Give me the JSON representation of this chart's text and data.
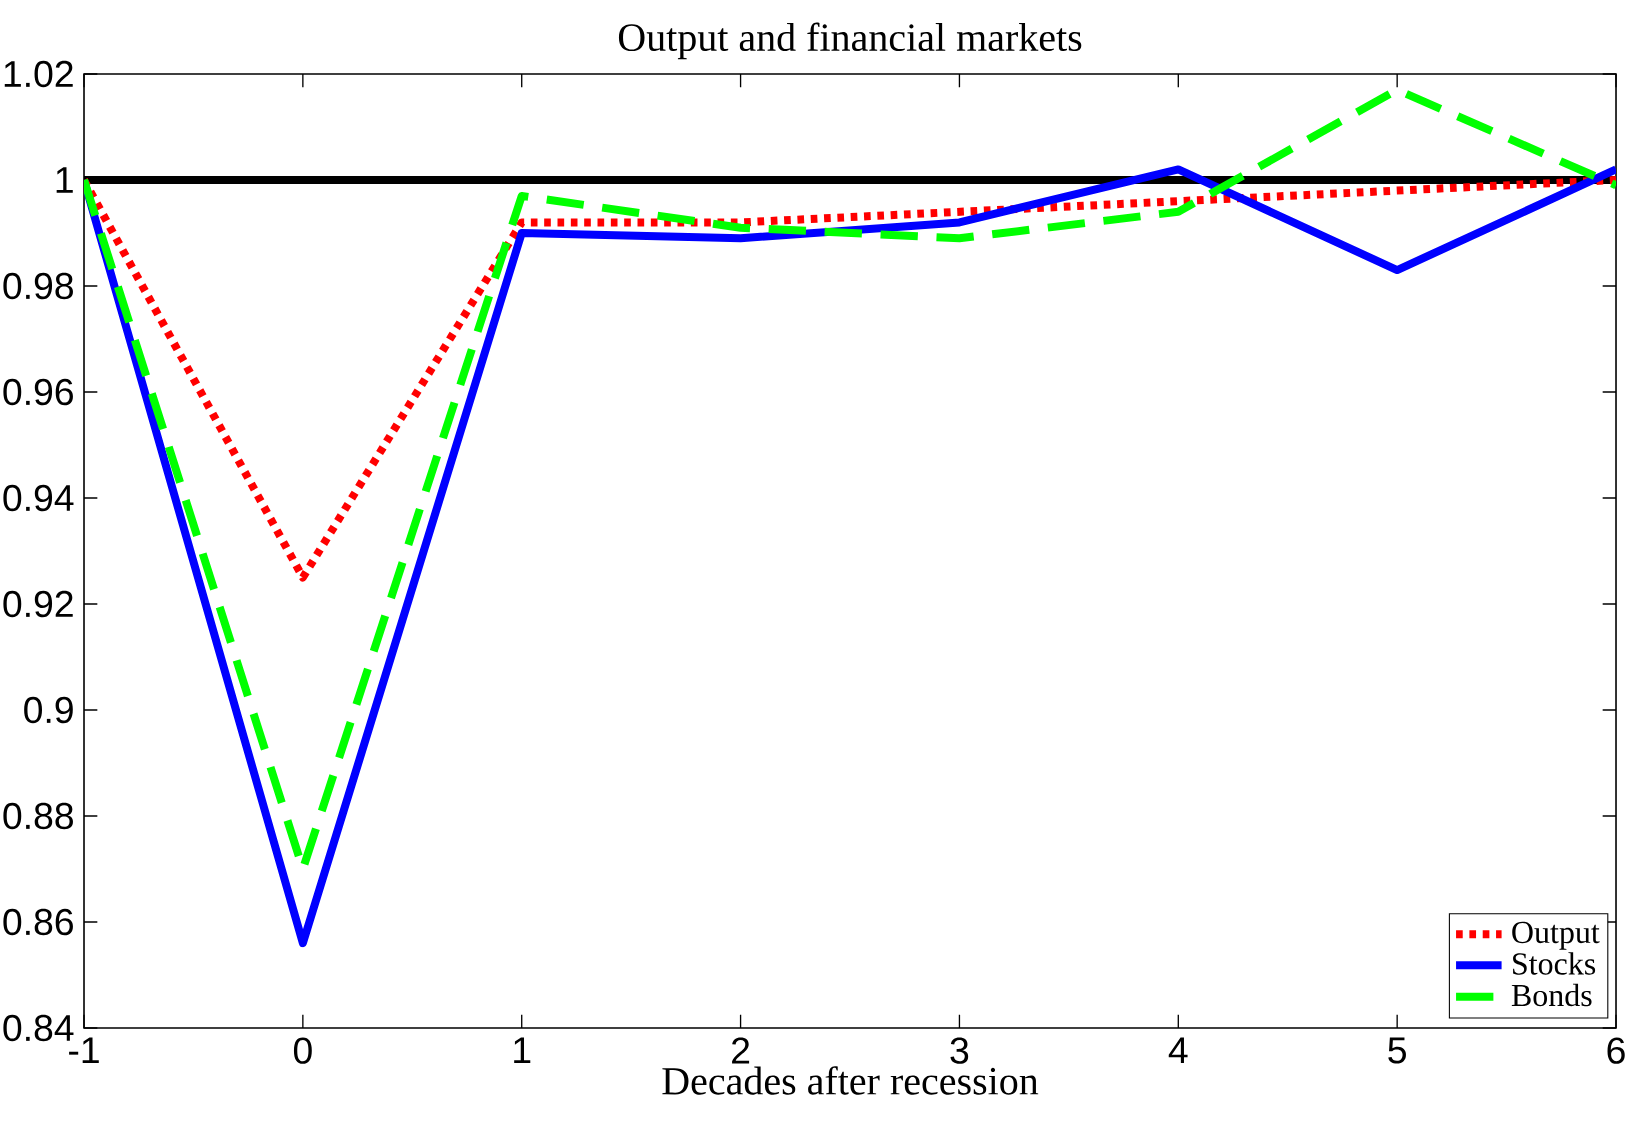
{
  "chart_data": {
    "type": "line",
    "title": "Output and financial markets",
    "xlabel": "Decades after recession",
    "x": [
      -1,
      0,
      1,
      2,
      3,
      4,
      5,
      6
    ],
    "series": [
      {
        "name": "Output",
        "color": "#ff0000",
        "line_style": "dotted",
        "values": [
          1.0,
          0.925,
          0.992,
          0.992,
          0.994,
          0.996,
          0.998,
          1.0
        ]
      },
      {
        "name": "Stocks",
        "color": "#0000ff",
        "line_style": "solid",
        "values": [
          1.0,
          0.856,
          0.99,
          0.989,
          0.992,
          1.002,
          0.983,
          1.002
        ]
      },
      {
        "name": "Bonds",
        "color": "#00ff00",
        "line_style": "dashed",
        "values": [
          1.0,
          0.87,
          0.997,
          0.991,
          0.989,
          0.994,
          1.017,
          0.999
        ]
      }
    ],
    "xlim": [
      -1,
      6
    ],
    "ylim": [
      0.84,
      1.02
    ],
    "xticks": [
      -1,
      0,
      1,
      2,
      3,
      4,
      5,
      6
    ],
    "yticks": [
      0.84,
      0.86,
      0.88,
      0.9,
      0.92,
      0.94,
      0.96,
      0.98,
      1,
      1.02
    ],
    "ref_lines": [
      {
        "axis": "y",
        "value": 1,
        "color": "#000000"
      }
    ],
    "grid": false,
    "legend": "bottom right"
  }
}
